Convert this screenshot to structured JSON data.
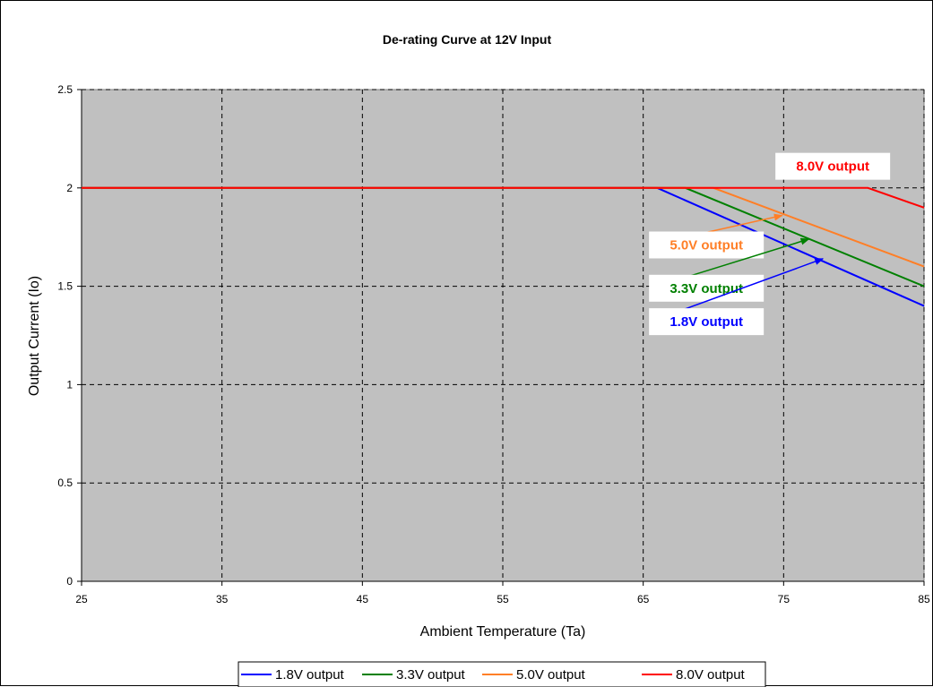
{
  "chart_data": {
    "type": "line",
    "title": "De-rating Curve at 12V Input",
    "xlabel": "Ambient Temperature (Ta)",
    "ylabel": "Output Current (Io)",
    "xlim": [
      25,
      85
    ],
    "ylim": [
      0,
      2.5
    ],
    "xticks": [
      25,
      35,
      45,
      55,
      65,
      75,
      85
    ],
    "yticks": [
      0,
      0.5,
      1,
      1.5,
      2,
      2.5
    ],
    "xtick_labels": [
      "25",
      "35",
      "45",
      "55",
      "65",
      "75",
      "85"
    ],
    "ytick_labels": [
      "0",
      "0.5",
      "1",
      "1.5",
      "2",
      "2.5"
    ],
    "grid": true,
    "plot_background": "#C0C0C0",
    "legend_position": "bottom",
    "series": [
      {
        "name": "1.8V output",
        "color": "#0000FF",
        "x": [
          25,
          66,
          85
        ],
        "y": [
          2,
          2,
          1.4
        ]
      },
      {
        "name": "3.3V output",
        "color": "#008000",
        "x": [
          25,
          68,
          85
        ],
        "y": [
          2,
          2,
          1.5
        ]
      },
      {
        "name": "5.0V output",
        "color": "#FF7F27",
        "x": [
          25,
          70,
          85
        ],
        "y": [
          2,
          2,
          1.6
        ]
      },
      {
        "name": "8.0V output",
        "color": "#FF0000",
        "x": [
          25,
          81,
          85
        ],
        "y": [
          2,
          2,
          1.9
        ]
      }
    ],
    "annotations": [
      {
        "text": "8.0V output",
        "color": "#FF0000",
        "box_x": 78.5,
        "box_y": 2.11,
        "arrow": null
      },
      {
        "text": "5.0V output",
        "color": "#FF7F27",
        "box_x": 69.5,
        "box_y": 1.71,
        "arrow": {
          "from": [
            65.5,
            1.71
          ],
          "to": [
            74.9,
            1.86
          ]
        }
      },
      {
        "text": "3.3V output",
        "color": "#008000",
        "box_x": 69.5,
        "box_y": 1.49,
        "arrow": {
          "from": [
            65.5,
            1.49
          ],
          "to": [
            76.8,
            1.74
          ]
        }
      },
      {
        "text": "1.8V output",
        "color": "#0000FF",
        "box_x": 69.5,
        "box_y": 1.32,
        "arrow": {
          "from": [
            65.5,
            1.32
          ],
          "to": [
            77.8,
            1.64
          ]
        }
      }
    ]
  }
}
